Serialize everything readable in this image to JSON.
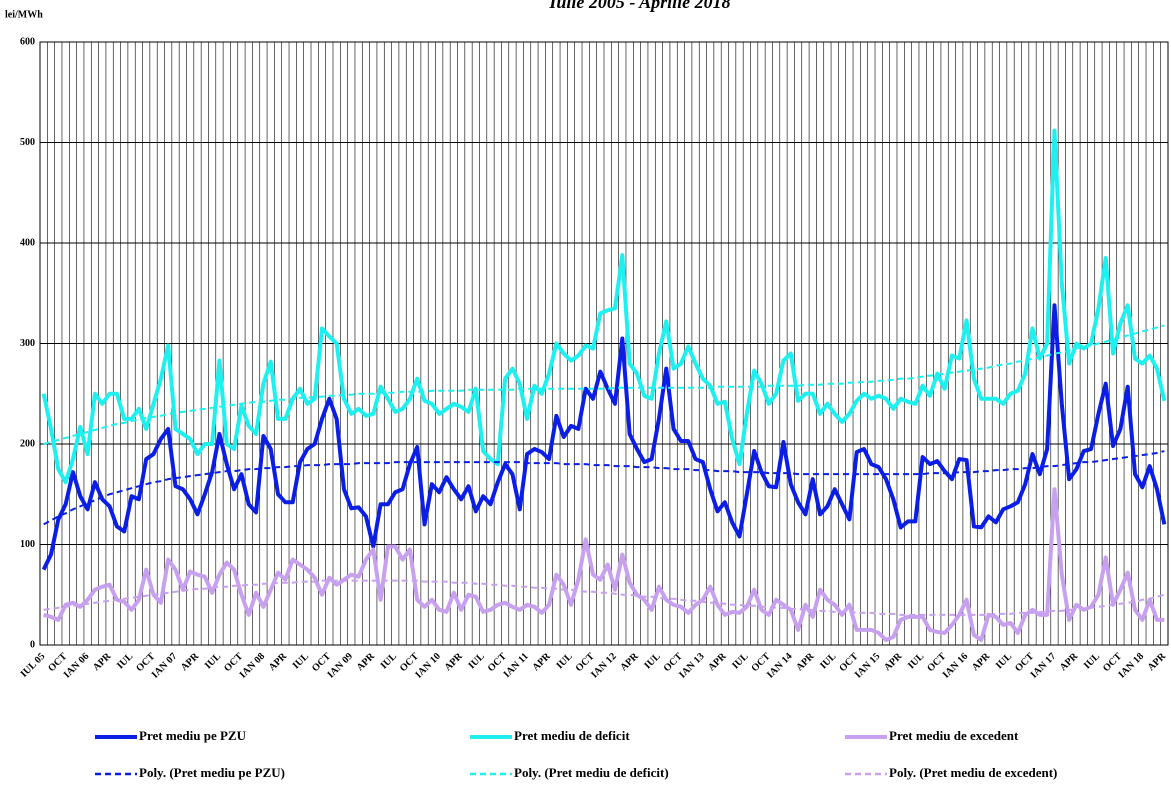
{
  "chart_data": {
    "type": "line",
    "title": "Iulie 2005 - Aprilie 2018",
    "y_label": "lei/MWh",
    "categories": [
      "IUL 05",
      null,
      null,
      "OCT",
      null,
      null,
      "IAN 06",
      null,
      null,
      "APR",
      null,
      null,
      "IUL",
      null,
      null,
      "OCT",
      null,
      null,
      "IAN 07",
      null,
      null,
      "APR",
      null,
      null,
      "IUL",
      null,
      null,
      "OCT",
      null,
      null,
      "IAN 08",
      null,
      null,
      "APR",
      null,
      null,
      "IUL",
      null,
      null,
      "OCT",
      null,
      null,
      "IAN 09",
      null,
      null,
      "APR",
      null,
      null,
      "IUL",
      null,
      null,
      "OCT",
      null,
      null,
      "IAN 10",
      null,
      null,
      "APR",
      null,
      null,
      "IUL",
      null,
      null,
      "OCT",
      null,
      null,
      "IAN 11",
      null,
      null,
      "APR",
      null,
      null,
      "IUL",
      null,
      null,
      "OCT",
      null,
      null,
      "IAN 12",
      null,
      null,
      "APR",
      null,
      null,
      "IUL",
      null,
      null,
      "OCT",
      null,
      null,
      "IAN 13",
      null,
      null,
      "APR",
      null,
      null,
      "IUL",
      null,
      null,
      "OCT",
      null,
      null,
      "IAN 14",
      null,
      null,
      "APR",
      null,
      null,
      "IUL",
      null,
      null,
      "OCT",
      null,
      null,
      "IAN 15",
      null,
      null,
      "APR",
      null,
      null,
      "IUL",
      null,
      null,
      "OCT",
      null,
      null,
      "IAN 16",
      null,
      null,
      "APR",
      null,
      null,
      "IUL",
      null,
      null,
      "OCT",
      null,
      null,
      "IAN 17",
      null,
      null,
      "APR",
      null,
      null,
      "IUL",
      null,
      null,
      "OCT",
      null,
      null,
      "IAN 18",
      null,
      null,
      "APR"
    ],
    "ylim": [
      0,
      600
    ],
    "yticks": [
      0,
      100,
      200,
      300,
      400,
      500,
      600
    ],
    "grid": true,
    "series": [
      {
        "name": "Pret mediu pe PZU",
        "color": "#0a1ee6",
        "style": "solid",
        "values": [
          75,
          90,
          125,
          140,
          172,
          148,
          135,
          162,
          145,
          138,
          118,
          113,
          148,
          145,
          185,
          190,
          205,
          215,
          158,
          155,
          145,
          130,
          150,
          172,
          210,
          180,
          155,
          170,
          140,
          132,
          208,
          195,
          150,
          142,
          142,
          182,
          195,
          200,
          225,
          245,
          225,
          155,
          136,
          137,
          128,
          98,
          140,
          140,
          152,
          155,
          180,
          197,
          120,
          160,
          152,
          167,
          155,
          145,
          158,
          133,
          148,
          140,
          162,
          180,
          170,
          135,
          190,
          195,
          192,
          185,
          228,
          207,
          218,
          215,
          255,
          245,
          272,
          255,
          240,
          305,
          210,
          195,
          182,
          185,
          225,
          275,
          215,
          203,
          203,
          185,
          182,
          155,
          133,
          142,
          122,
          108,
          150,
          193,
          172,
          158,
          157,
          202,
          160,
          142,
          130,
          165,
          130,
          138,
          155,
          140,
          125,
          192,
          195,
          180,
          177,
          165,
          145,
          117,
          123,
          123,
          187,
          180,
          183,
          173,
          165,
          185,
          184,
          118,
          117,
          128,
          122,
          135,
          138,
          142,
          160,
          190,
          170,
          195,
          338,
          240,
          165,
          175,
          193,
          195,
          230,
          260,
          198,
          215,
          257,
          170,
          157,
          178,
          155,
          120
        ]
      },
      {
        "name": "Pret mediu de deficit",
        "color": "#1ef0f0",
        "style": "solid",
        "values": [
          250,
          215,
          175,
          162,
          185,
          217,
          190,
          250,
          240,
          250,
          250,
          225,
          225,
          235,
          215,
          240,
          265,
          298,
          215,
          210,
          205,
          190,
          200,
          200,
          283,
          200,
          195,
          238,
          218,
          210,
          260,
          282,
          225,
          225,
          245,
          255,
          240,
          245,
          315,
          307,
          300,
          245,
          230,
          235,
          228,
          230,
          257,
          245,
          232,
          235,
          245,
          265,
          243,
          240,
          230,
          235,
          240,
          237,
          232,
          255,
          193,
          185,
          180,
          265,
          275,
          260,
          225,
          258,
          250,
          270,
          300,
          290,
          283,
          288,
          298,
          295,
          330,
          333,
          335,
          388,
          280,
          270,
          248,
          245,
          290,
          322,
          275,
          280,
          297,
          280,
          265,
          258,
          240,
          242,
          205,
          180,
          230,
          273,
          260,
          240,
          250,
          283,
          290,
          243,
          250,
          250,
          230,
          240,
          230,
          222,
          230,
          243,
          250,
          245,
          248,
          245,
          235,
          245,
          242,
          240,
          258,
          248,
          270,
          255,
          288,
          285,
          323,
          265,
          245,
          245,
          245,
          240,
          250,
          253,
          270,
          315,
          285,
          300,
          512,
          360,
          280,
          300,
          295,
          300,
          335,
          385,
          290,
          320,
          338,
          285,
          280,
          288,
          275,
          243
        ]
      },
      {
        "name": "Pret mediu de excedent",
        "color": "#c8a0f0",
        "style": "solid",
        "values": [
          30,
          28,
          25,
          40,
          42,
          38,
          45,
          55,
          58,
          60,
          45,
          43,
          35,
          45,
          75,
          50,
          42,
          85,
          75,
          55,
          73,
          70,
          68,
          52,
          70,
          82,
          75,
          50,
          30,
          52,
          38,
          55,
          72,
          65,
          85,
          80,
          75,
          67,
          50,
          67,
          60,
          65,
          70,
          68,
          85,
          95,
          45,
          98,
          98,
          85,
          95,
          45,
          38,
          45,
          35,
          33,
          52,
          35,
          50,
          48,
          33,
          35,
          40,
          42,
          38,
          35,
          40,
          38,
          32,
          40,
          70,
          60,
          40,
          65,
          105,
          70,
          65,
          80,
          55,
          90,
          62,
          50,
          45,
          35,
          58,
          45,
          40,
          38,
          32,
          40,
          45,
          58,
          40,
          30,
          33,
          32,
          38,
          55,
          35,
          30,
          45,
          40,
          35,
          15,
          40,
          28,
          55,
          45,
          40,
          30,
          40,
          15,
          15,
          15,
          12,
          5,
          8,
          25,
          28,
          28,
          28,
          15,
          13,
          12,
          20,
          30,
          45,
          10,
          5,
          30,
          28,
          20,
          22,
          12,
          30,
          35,
          30,
          30,
          155,
          70,
          25,
          40,
          35,
          38,
          50,
          87,
          40,
          55,
          72,
          35,
          25,
          45,
          25,
          25
        ]
      },
      {
        "name": "Poly. (Pret mediu pe PZU)",
        "color": "#0a1ee6",
        "style": "dashed",
        "values": [
          120,
          124,
          128,
          131,
          135,
          138,
          141,
          144,
          147,
          150,
          152,
          154,
          156,
          158,
          160,
          162,
          163,
          165,
          166,
          167,
          168,
          169,
          170,
          171,
          172,
          173,
          173,
          174,
          175,
          175,
          176,
          176,
          177,
          177,
          178,
          178,
          179,
          179,
          179,
          180,
          180,
          180,
          180,
          181,
          181,
          181,
          181,
          181,
          182,
          182,
          182,
          182,
          182,
          182,
          182,
          182,
          182,
          182,
          182,
          182,
          182,
          182,
          182,
          182,
          182,
          182,
          181,
          181,
          181,
          181,
          181,
          180,
          180,
          180,
          180,
          179,
          179,
          179,
          178,
          178,
          178,
          177,
          177,
          177,
          176,
          176,
          175,
          175,
          175,
          174,
          174,
          174,
          173,
          173,
          173,
          172,
          172,
          172,
          172,
          171,
          171,
          171,
          171,
          170,
          170,
          170,
          170,
          170,
          170,
          170,
          170,
          170,
          170,
          170,
          170,
          170,
          170,
          170,
          170,
          170,
          170,
          171,
          171,
          171,
          171,
          172,
          172,
          172,
          173,
          173,
          174,
          174,
          175,
          175,
          176,
          176,
          177,
          178,
          178,
          179,
          180,
          181,
          182,
          182,
          183,
          184,
          185,
          186,
          187,
          188,
          189,
          190,
          191,
          193
        ]
      },
      {
        "name": "Poly. (Pret mediu de deficit)",
        "color": "#1ef0f0",
        "style": "dashed",
        "values": [
          200,
          202,
          204,
          206,
          208,
          210,
          212,
          214,
          216,
          218,
          220,
          221,
          223,
          224,
          226,
          227,
          228,
          230,
          231,
          232,
          233,
          234,
          235,
          236,
          237,
          238,
          239,
          240,
          241,
          242,
          242,
          243,
          244,
          244,
          245,
          246,
          246,
          247,
          247,
          248,
          248,
          249,
          249,
          250,
          250,
          250,
          251,
          251,
          251,
          252,
          252,
          252,
          252,
          253,
          253,
          253,
          253,
          253,
          254,
          254,
          254,
          254,
          254,
          254,
          254,
          255,
          255,
          255,
          255,
          255,
          255,
          255,
          255,
          255,
          255,
          255,
          255,
          255,
          256,
          256,
          256,
          256,
          256,
          256,
          256,
          256,
          256,
          256,
          256,
          256,
          256,
          256,
          257,
          257,
          257,
          257,
          257,
          257,
          257,
          258,
          258,
          258,
          258,
          258,
          259,
          259,
          259,
          260,
          260,
          260,
          261,
          261,
          262,
          262,
          263,
          263,
          264,
          265,
          265,
          266,
          267,
          268,
          269,
          270,
          271,
          272,
          273,
          274,
          275,
          276,
          278,
          279,
          280,
          282,
          283,
          285,
          286,
          288,
          290,
          291,
          293,
          295,
          297,
          298,
          300,
          302,
          304,
          306,
          308,
          310,
          312,
          314,
          316,
          318
        ]
      },
      {
        "name": "Poly. (Pret mediu de excedent)",
        "color": "#c8a0f0",
        "style": "dashed",
        "values": [
          35,
          36,
          37,
          38,
          39,
          40,
          41,
          42,
          43,
          44,
          45,
          46,
          47,
          48,
          49,
          50,
          51,
          52,
          53,
          54,
          55,
          56,
          56,
          57,
          58,
          58,
          59,
          59,
          60,
          60,
          61,
          61,
          62,
          62,
          62,
          63,
          63,
          63,
          64,
          64,
          64,
          64,
          64,
          64,
          64,
          64,
          64,
          64,
          64,
          64,
          64,
          64,
          63,
          63,
          63,
          63,
          62,
          62,
          62,
          61,
          61,
          60,
          60,
          59,
          59,
          58,
          58,
          57,
          57,
          56,
          56,
          55,
          55,
          54,
          53,
          53,
          52,
          52,
          51,
          50,
          50,
          49,
          48,
          48,
          47,
          46,
          46,
          45,
          44,
          44,
          43,
          42,
          42,
          41,
          40,
          40,
          39,
          39,
          38,
          38,
          37,
          37,
          36,
          36,
          35,
          35,
          34,
          34,
          33,
          33,
          33,
          32,
          32,
          32,
          31,
          31,
          31,
          30,
          30,
          30,
          30,
          30,
          30,
          30,
          30,
          30,
          30,
          30,
          30,
          30,
          31,
          31,
          31,
          32,
          32,
          32,
          33,
          33,
          34,
          34,
          35,
          35,
          36,
          37,
          38,
          39,
          40,
          41,
          42,
          43,
          45,
          46,
          48,
          50
        ]
      }
    ]
  }
}
